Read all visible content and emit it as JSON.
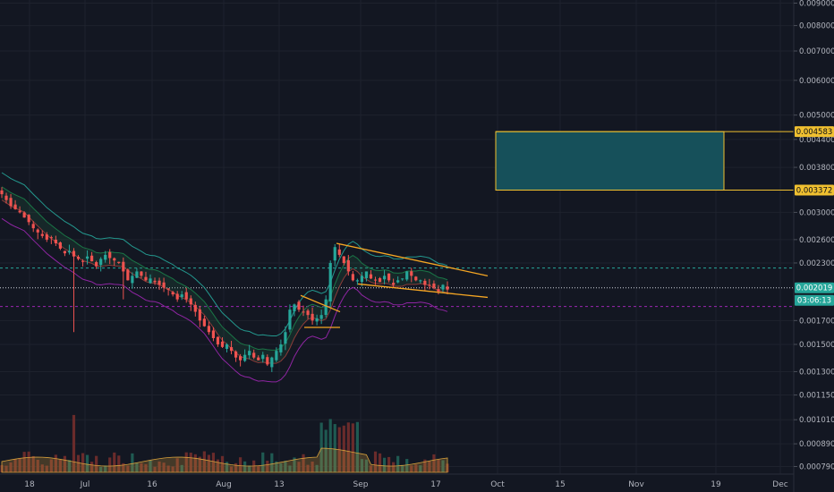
{
  "chart_data": {
    "type": "candlestick",
    "y_scale": "log",
    "ylim": [
      0.00075,
      0.0098
    ],
    "y_ticks": [
      "0.009000",
      "0.008000",
      "0.007000",
      "0.006000",
      "0.005000",
      "0.004400",
      "0.003800",
      "0.003000",
      "0.002600",
      "0.002300",
      "0.001700",
      "0.001500",
      "0.001300",
      "0.001150",
      "0.001010",
      "0.000890",
      "0.000790"
    ],
    "x_ticks": [
      "18",
      "Jul",
      "16",
      "Aug",
      "13",
      "Sep",
      "17",
      "Oct",
      "15",
      "Nov",
      "19",
      "Dec"
    ],
    "price_tags": [
      {
        "label": "0.004583",
        "value": 0.004583,
        "color": "#f0c030"
      },
      {
        "label": "0.003372",
        "value": 0.003372,
        "color": "#f0c030"
      },
      {
        "label": "0.002019",
        "value": 0.002019,
        "color": "#26a69a"
      }
    ],
    "countdown": "03:06:13",
    "target_zone": {
      "top": 0.004583,
      "bottom": 0.003372,
      "fill": "#16505a",
      "border": "#f0c030"
    },
    "horizontal_levels": [
      {
        "value": 0.00224,
        "color": "#26a69a",
        "style": "dashed"
      },
      {
        "value": 0.002019,
        "color": "#cfd3dc",
        "style": "dotted"
      },
      {
        "value": 0.00183,
        "color": "#9c27b0",
        "style": "dashed"
      }
    ],
    "close_series": [
      0.0033,
      0.0032,
      0.0031,
      0.00305,
      0.003,
      0.00292,
      0.00285,
      0.00276,
      0.0027,
      0.00265,
      0.0026,
      0.00262,
      0.00255,
      0.00248,
      0.00242,
      0.00245,
      0.00238,
      0.00235,
      0.00232,
      0.00238,
      0.00232,
      0.00226,
      0.00235,
      0.0024,
      0.00236,
      0.00233,
      0.0023,
      0.0022,
      0.0021,
      0.00215,
      0.0022,
      0.00215,
      0.0021,
      0.00212,
      0.00208,
      0.00205,
      0.00202,
      0.002,
      0.00195,
      0.0019,
      0.00195,
      0.0019,
      0.00185,
      0.00178,
      0.0017,
      0.00165,
      0.0016,
      0.00155,
      0.0015,
      0.00148,
      0.0015,
      0.00145,
      0.0014,
      0.00138,
      0.00142,
      0.00145,
      0.0014,
      0.00138,
      0.00142,
      0.00135,
      0.0014,
      0.00145,
      0.0015,
      0.0016,
      0.0018,
      0.00185,
      0.0018,
      0.00178,
      0.00175,
      0.0017,
      0.00172,
      0.00175,
      0.0019,
      0.0023,
      0.0025,
      0.0024,
      0.0023,
      0.0022,
      0.0021,
      0.0021,
      0.00215,
      0.0022,
      0.00212,
      0.0021,
      0.00208,
      0.00215,
      0.0021,
      0.00205,
      0.0021,
      0.00212,
      0.0022,
      0.00215,
      0.0021,
      0.0021,
      0.00205,
      0.00205,
      0.00202,
      0.00198,
      0.00205,
      0.002
    ]
  }
}
